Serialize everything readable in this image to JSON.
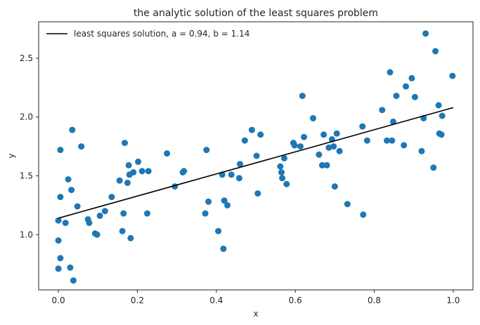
{
  "chart_data": {
    "type": "scatter",
    "title": "the analytic solution of the least squares problem",
    "xlabel": "x",
    "ylabel": "y",
    "xlim": [
      -0.05,
      1.05
    ],
    "ylim": [
      0.53,
      2.81
    ],
    "xticks": [
      0.0,
      0.2,
      0.4,
      0.6,
      0.8,
      1.0
    ],
    "xtick_labels": [
      "0.0",
      "0.2",
      "0.4",
      "0.6",
      "0.8",
      "1.0"
    ],
    "yticks": [
      1.0,
      1.5,
      2.0,
      2.5
    ],
    "ytick_labels": [
      "1.0",
      "1.5",
      "2.0",
      "2.5"
    ],
    "grid": false,
    "legend_position": "top-left",
    "colors": {
      "points": "#1f77b4",
      "line": "#000000",
      "axes": "#262626"
    },
    "line": {
      "label": "least squares solution, a = 0.94, b = 1.14",
      "a": 0.94,
      "b": 1.14,
      "x_range": [
        0.0,
        1.0
      ]
    },
    "points": [
      [
        0.0,
        1.12
      ],
      [
        0.0,
        0.95
      ],
      [
        0.0,
        0.71
      ],
      [
        0.005,
        1.32
      ],
      [
        0.005,
        1.72
      ],
      [
        0.005,
        0.8
      ],
      [
        0.018,
        1.1
      ],
      [
        0.025,
        1.47
      ],
      [
        0.03,
        0.72
      ],
      [
        0.033,
        1.38
      ],
      [
        0.035,
        1.89
      ],
      [
        0.038,
        0.61
      ],
      [
        0.048,
        1.24
      ],
      [
        0.058,
        1.75
      ],
      [
        0.075,
        1.13
      ],
      [
        0.078,
        1.1
      ],
      [
        0.093,
        1.01
      ],
      [
        0.098,
        1.0
      ],
      [
        0.105,
        1.16
      ],
      [
        0.118,
        1.2
      ],
      [
        0.135,
        1.32
      ],
      [
        0.155,
        1.46
      ],
      [
        0.162,
        1.03
      ],
      [
        0.165,
        1.18
      ],
      [
        0.168,
        1.78
      ],
      [
        0.175,
        1.44
      ],
      [
        0.178,
        1.59
      ],
      [
        0.18,
        1.51
      ],
      [
        0.183,
        0.97
      ],
      [
        0.19,
        1.53
      ],
      [
        0.202,
        1.62
      ],
      [
        0.212,
        1.54
      ],
      [
        0.225,
        1.18
      ],
      [
        0.228,
        1.54
      ],
      [
        0.275,
        1.69
      ],
      [
        0.295,
        1.41
      ],
      [
        0.315,
        1.53
      ],
      [
        0.318,
        1.54
      ],
      [
        0.372,
        1.18
      ],
      [
        0.375,
        1.72
      ],
      [
        0.38,
        1.28
      ],
      [
        0.405,
        1.03
      ],
      [
        0.415,
        1.51
      ],
      [
        0.418,
        0.88
      ],
      [
        0.42,
        1.29
      ],
      [
        0.428,
        1.25
      ],
      [
        0.438,
        1.51
      ],
      [
        0.458,
        1.48
      ],
      [
        0.46,
        1.6
      ],
      [
        0.472,
        1.8
      ],
      [
        0.49,
        1.89
      ],
      [
        0.502,
        1.67
      ],
      [
        0.505,
        1.35
      ],
      [
        0.512,
        1.85
      ],
      [
        0.562,
        1.58
      ],
      [
        0.565,
        1.53
      ],
      [
        0.567,
        1.48
      ],
      [
        0.572,
        1.65
      ],
      [
        0.578,
        1.43
      ],
      [
        0.595,
        1.78
      ],
      [
        0.598,
        1.76
      ],
      [
        0.613,
        1.75
      ],
      [
        0.618,
        2.18
      ],
      [
        0.622,
        1.83
      ],
      [
        0.645,
        1.99
      ],
      [
        0.66,
        1.68
      ],
      [
        0.668,
        1.59
      ],
      [
        0.672,
        1.85
      ],
      [
        0.68,
        1.59
      ],
      [
        0.685,
        1.74
      ],
      [
        0.693,
        1.81
      ],
      [
        0.697,
        1.75
      ],
      [
        0.7,
        1.41
      ],
      [
        0.705,
        1.86
      ],
      [
        0.712,
        1.71
      ],
      [
        0.732,
        1.26
      ],
      [
        0.77,
        1.92
      ],
      [
        0.772,
        1.17
      ],
      [
        0.782,
        1.8
      ],
      [
        0.82,
        2.06
      ],
      [
        0.832,
        1.8
      ],
      [
        0.84,
        2.38
      ],
      [
        0.845,
        1.8
      ],
      [
        0.848,
        1.96
      ],
      [
        0.856,
        2.18
      ],
      [
        0.875,
        1.76
      ],
      [
        0.88,
        2.26
      ],
      [
        0.895,
        2.33
      ],
      [
        0.903,
        2.17
      ],
      [
        0.92,
        1.71
      ],
      [
        0.925,
        1.99
      ],
      [
        0.93,
        2.71
      ],
      [
        0.95,
        1.57
      ],
      [
        0.955,
        2.56
      ],
      [
        0.963,
        2.1
      ],
      [
        0.965,
        1.86
      ],
      [
        0.97,
        1.85
      ],
      [
        0.972,
        2.01
      ],
      [
        0.998,
        2.35
      ]
    ]
  }
}
